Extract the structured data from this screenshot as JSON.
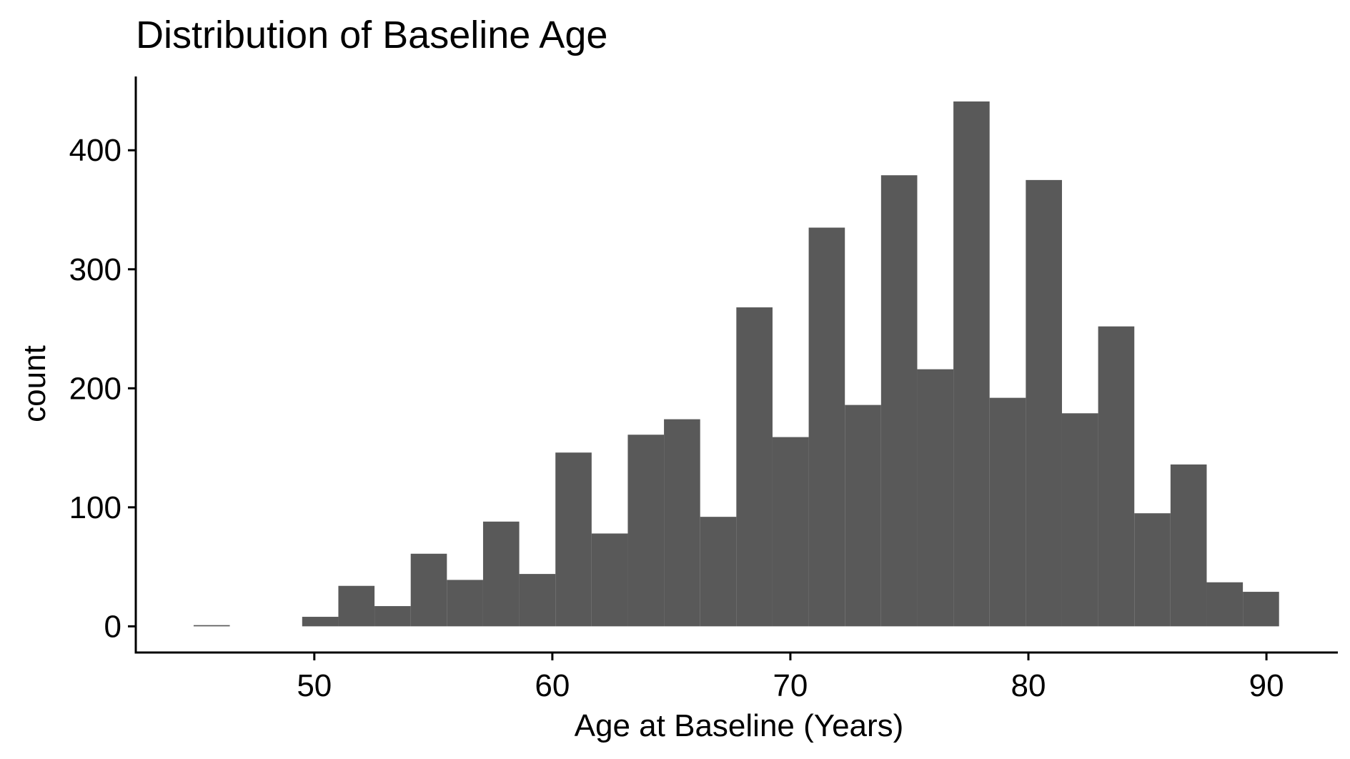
{
  "chart_data": {
    "type": "bar",
    "title": "Distribution of Baseline Age",
    "xlabel": "Age at Baseline (Years)",
    "ylabel": "count",
    "bin_width": 1.52,
    "bins": [
      {
        "x_start": 44.93,
        "x_end": 46.45,
        "count": 1
      },
      {
        "x_start": 46.45,
        "x_end": 47.97,
        "count": 0
      },
      {
        "x_start": 47.97,
        "x_end": 49.49,
        "count": 0
      },
      {
        "x_start": 49.49,
        "x_end": 51.01,
        "count": 8
      },
      {
        "x_start": 51.01,
        "x_end": 52.53,
        "count": 34
      },
      {
        "x_start": 52.53,
        "x_end": 54.05,
        "count": 17
      },
      {
        "x_start": 54.05,
        "x_end": 55.57,
        "count": 61
      },
      {
        "x_start": 55.57,
        "x_end": 57.09,
        "count": 39
      },
      {
        "x_start": 57.09,
        "x_end": 58.61,
        "count": 88
      },
      {
        "x_start": 58.61,
        "x_end": 60.13,
        "count": 44
      },
      {
        "x_start": 60.13,
        "x_end": 61.65,
        "count": 146
      },
      {
        "x_start": 61.65,
        "x_end": 63.17,
        "count": 78
      },
      {
        "x_start": 63.17,
        "x_end": 64.69,
        "count": 161
      },
      {
        "x_start": 64.69,
        "x_end": 66.21,
        "count": 174
      },
      {
        "x_start": 66.21,
        "x_end": 67.73,
        "count": 92
      },
      {
        "x_start": 67.73,
        "x_end": 69.25,
        "count": 268
      },
      {
        "x_start": 69.25,
        "x_end": 70.77,
        "count": 159
      },
      {
        "x_start": 70.77,
        "x_end": 72.29,
        "count": 335
      },
      {
        "x_start": 72.29,
        "x_end": 73.81,
        "count": 186
      },
      {
        "x_start": 73.81,
        "x_end": 75.33,
        "count": 379
      },
      {
        "x_start": 75.33,
        "x_end": 76.85,
        "count": 216
      },
      {
        "x_start": 76.85,
        "x_end": 78.37,
        "count": 441
      },
      {
        "x_start": 78.37,
        "x_end": 79.89,
        "count": 192
      },
      {
        "x_start": 79.89,
        "x_end": 81.41,
        "count": 375
      },
      {
        "x_start": 81.41,
        "x_end": 82.93,
        "count": 179
      },
      {
        "x_start": 82.93,
        "x_end": 84.45,
        "count": 252
      },
      {
        "x_start": 84.45,
        "x_end": 85.97,
        "count": 95
      },
      {
        "x_start": 85.97,
        "x_end": 87.49,
        "count": 136
      },
      {
        "x_start": 87.49,
        "x_end": 89.01,
        "count": 37
      },
      {
        "x_start": 89.01,
        "x_end": 90.53,
        "count": 29
      }
    ],
    "xlim": [
      42.5,
      93.0
    ],
    "ylim": [
      -22,
      462
    ],
    "x_ticks": [
      50,
      60,
      70,
      80,
      90
    ],
    "y_ticks": [
      0,
      100,
      200,
      300,
      400
    ],
    "bar_color": "#595959",
    "grid": false,
    "legend": "none"
  }
}
